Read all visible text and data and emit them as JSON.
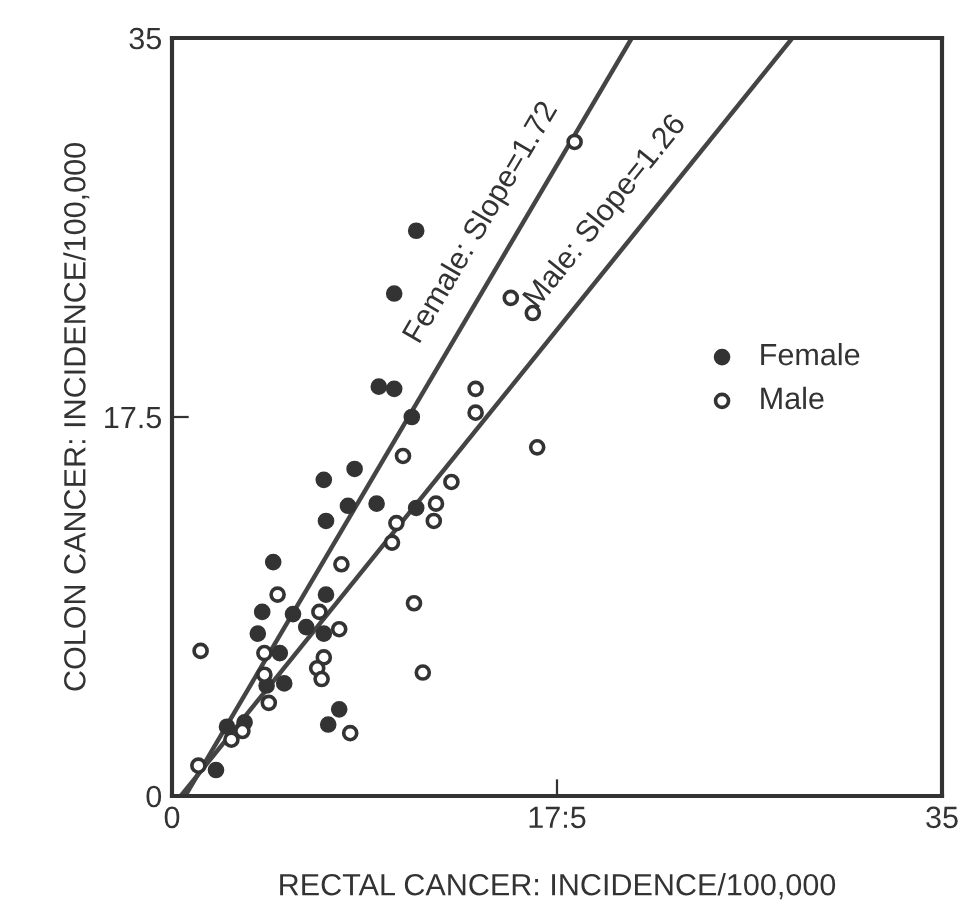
{
  "chart_data": {
    "type": "scatter",
    "xlabel": "RECTAL CANCER: INCIDENCE/100,000",
    "ylabel": "COLON CANCER: INCIDENCE/100,000",
    "xlim": [
      0,
      35
    ],
    "ylim": [
      0,
      35
    ],
    "xticks": [
      0,
      {
        "value": 17.5,
        "label": "17:5"
      },
      35
    ],
    "yticks": [
      0,
      17.5,
      35
    ],
    "grid": false,
    "legend": "right",
    "series": [
      {
        "name": "Female",
        "color": "#333333",
        "marker": "circle",
        "x": [
          11.1,
          10.1,
          9.4,
          10.1,
          10.9,
          8.3,
          6.9,
          8.0,
          9.3,
          11.1,
          7.0,
          4.6,
          7.0,
          4.1,
          5.5,
          3.9,
          6.1,
          6.9,
          4.9,
          5.1,
          4.3,
          7.6,
          7.1,
          3.3,
          2.5,
          2.0
        ],
        "values": [
          26.1,
          23.2,
          18.9,
          18.8,
          17.5,
          15.1,
          14.6,
          13.4,
          13.5,
          13.3,
          12.7,
          10.8,
          9.3,
          8.5,
          8.4,
          7.5,
          7.8,
          7.5,
          6.6,
          5.2,
          5.1,
          4.0,
          3.3,
          3.4,
          3.2,
          1.2
        ]
      },
      {
        "name": "Male",
        "color": "#333333",
        "marker": "circle",
        "x": [
          18.3,
          15.4,
          16.4,
          13.8,
          13.8,
          16.6,
          10.5,
          12.7,
          12.0,
          11.9,
          10.2,
          10.0,
          7.7,
          4.8,
          11.0,
          6.7,
          7.6,
          1.3,
          4.2,
          6.9,
          6.6,
          6.8,
          11.4,
          4.2,
          4.4,
          8.1,
          3.2,
          2.7,
          1.2
        ],
        "values": [
          30.2,
          23.0,
          22.3,
          18.8,
          17.7,
          16.1,
          15.7,
          14.5,
          13.5,
          12.7,
          12.6,
          11.7,
          10.7,
          9.3,
          8.9,
          8.5,
          7.7,
          6.7,
          6.6,
          6.4,
          5.9,
          5.4,
          5.7,
          5.6,
          4.3,
          2.9,
          3.0,
          2.6,
          1.4
        ]
      },
      {
        "type": "line",
        "marker": "none",
        "color": "#444444",
        "x": [
          0.6,
          20.9
        ],
        "values": [
          0,
          35
        ]
      },
      {
        "type": "line",
        "marker": "none",
        "color": "#444444",
        "x": [
          0.4,
          28.2
        ],
        "values": [
          0,
          35
        ]
      }
    ],
    "annotations": [
      {
        "text": "Female: Slope=1.72",
        "x": 15.5,
        "y": 25.6
      },
      {
        "text": "Male: Slope=1.26",
        "x": 21.0,
        "y": 25.9
      }
    ]
  }
}
